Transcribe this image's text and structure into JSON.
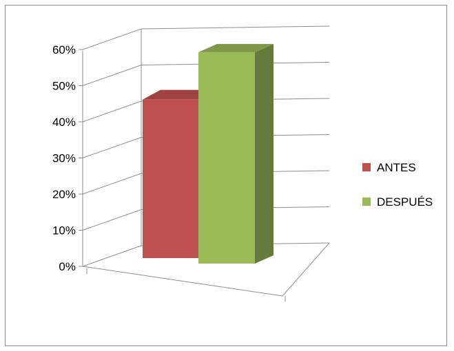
{
  "chart_data": {
    "type": "bar",
    "style": "3d-clustered-column",
    "categories": [
      ""
    ],
    "series": [
      {
        "name": "ANTES",
        "values": [
          0.45
        ],
        "color": "#C0504D"
      },
      {
        "name": "DESPUÉS",
        "values": [
          0.6
        ],
        "color": "#9BBB59"
      }
    ],
    "ylim": [
      0,
      0.6
    ],
    "y_ticks": [
      "0%",
      "10%",
      "20%",
      "30%",
      "40%",
      "50%",
      "60%"
    ],
    "grid": true,
    "legend": "right"
  }
}
